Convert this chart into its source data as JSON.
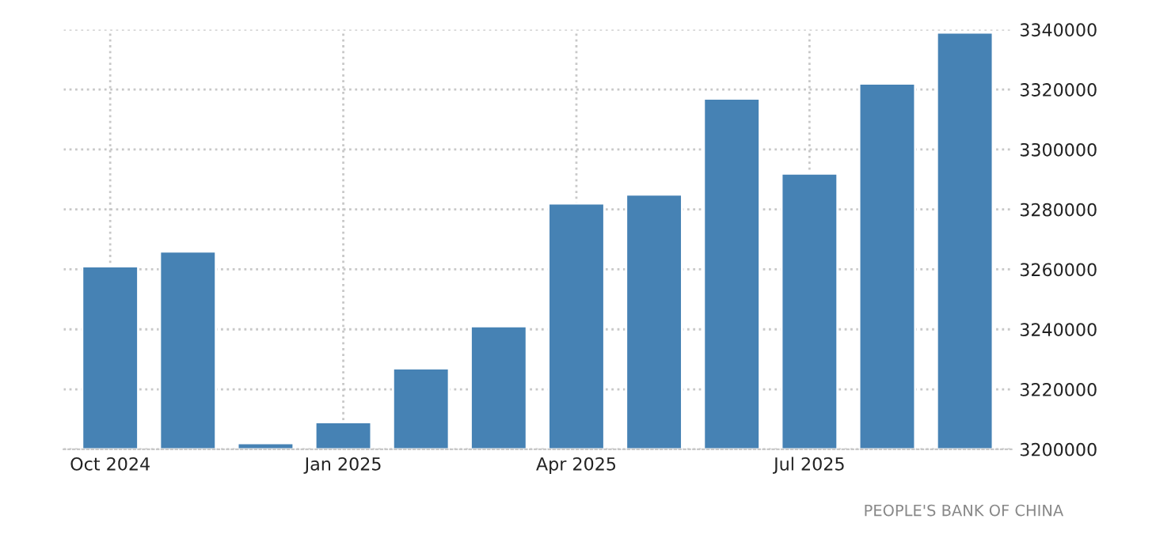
{
  "chart_data": {
    "type": "bar",
    "categories": [
      "Oct 2024",
      null,
      null,
      "Jan 2025",
      null,
      null,
      "Apr 2025",
      null,
      null,
      "Jul 2025",
      null,
      null
    ],
    "values": [
      3261000,
      3266000,
      3202000,
      3209000,
      3227000,
      3241000,
      3282000,
      3285000,
      3317000,
      3292000,
      3322000,
      3339000
    ],
    "color": "#4682b4",
    "ylim": [
      3200000,
      3340000
    ],
    "yticks": [
      3200000,
      3220000,
      3240000,
      3260000,
      3280000,
      3300000,
      3320000,
      3340000
    ],
    "grid": true,
    "legend": false,
    "annotations": [
      "PEOPLE'S BANK OF CHINA"
    ]
  }
}
